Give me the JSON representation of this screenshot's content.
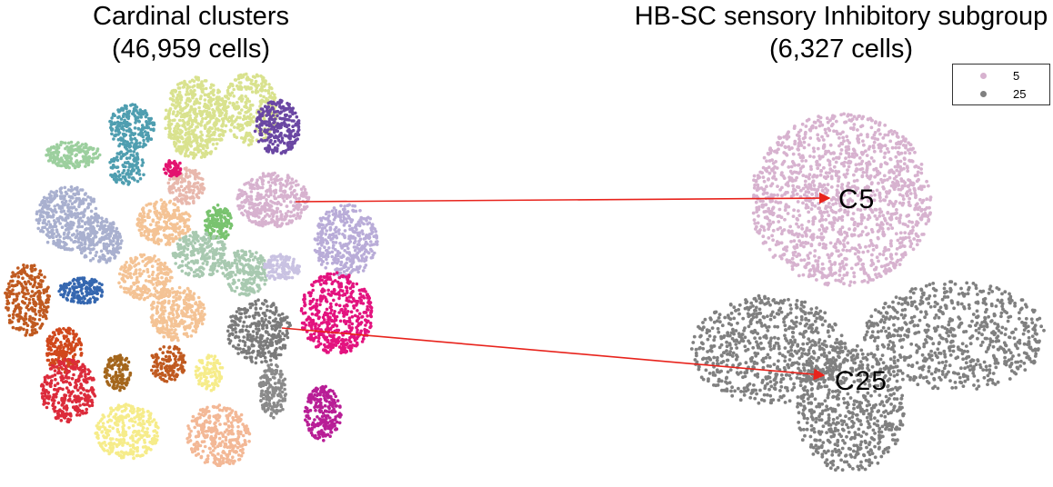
{
  "left_title": {
    "line1": "Cardinal clusters",
    "line2": "(46,959 cells)"
  },
  "right_title": {
    "line1": "HB-SC sensory Inhibitory subgroup",
    "line2": "(6,327 cells)"
  },
  "legend": [
    {
      "label": "5",
      "color": "#d7b2cf"
    },
    {
      "label": "25",
      "color": "#808080"
    }
  ],
  "callouts": [
    {
      "label": "C5",
      "color": "#d7b2cf"
    },
    {
      "label": "C25",
      "color": "#808080"
    }
  ],
  "arrow_color": "#e8231c"
}
